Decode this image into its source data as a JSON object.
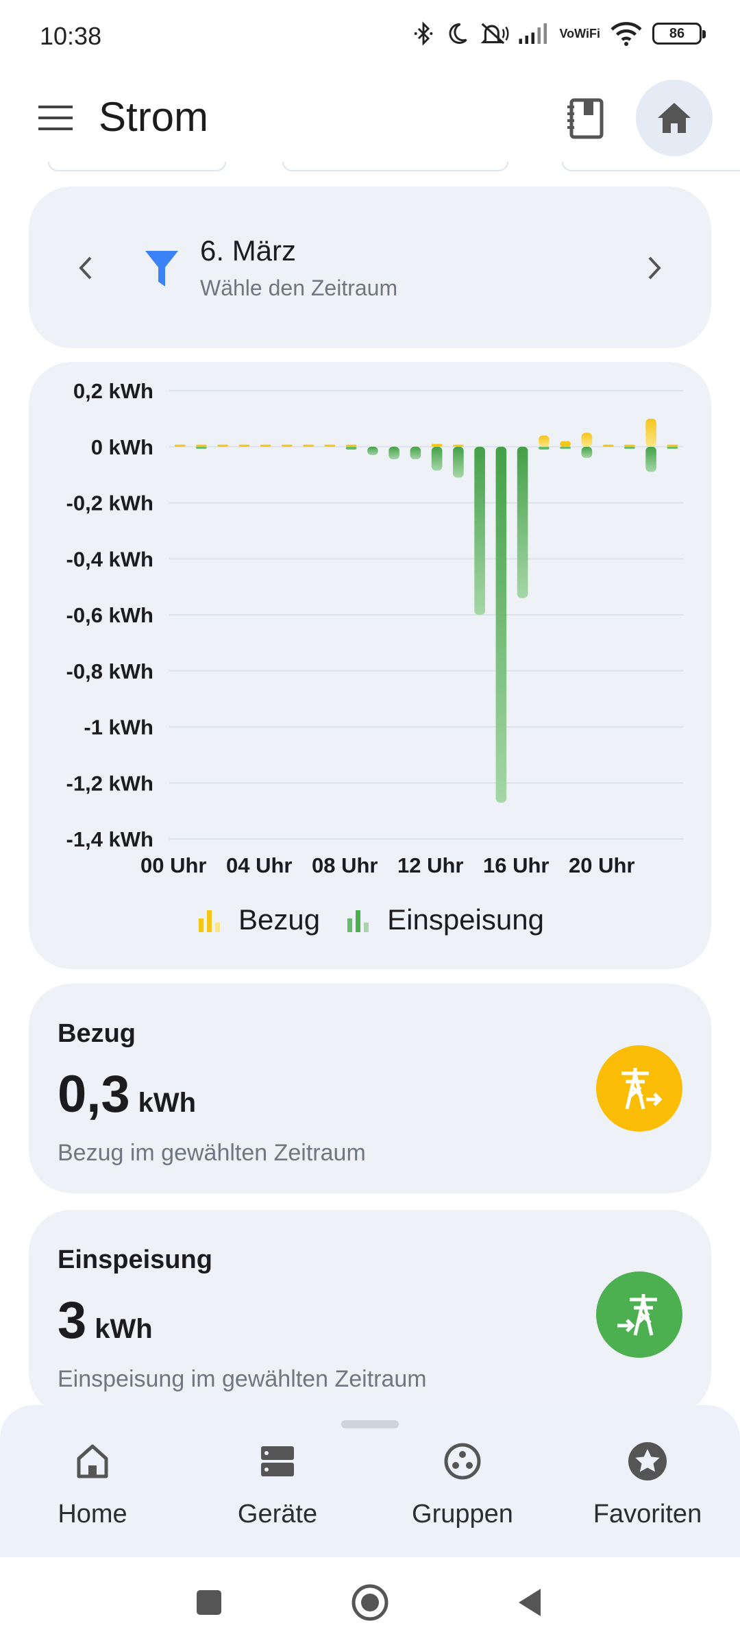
{
  "status_bar": {
    "time": "10:38",
    "icons": [
      "bluetooth-icon",
      "moon-icon",
      "mute-icon",
      "signal-icon",
      "vowifi-icon",
      "wifi-icon"
    ],
    "vowifi_top": "Vo",
    "vowifi_bottom": "WiFi",
    "battery": "86"
  },
  "app_bar": {
    "title": "Strom",
    "menu_icon": "menu-icon",
    "right_icons": [
      "notebook-icon",
      "home-icon"
    ]
  },
  "date_filter": {
    "title": "6. März",
    "subtitle": "Wähle den Zeitraum"
  },
  "chart_data": {
    "type": "bar",
    "title": "",
    "xlabel": "",
    "ylabel": "",
    "ylim": [
      -1.4,
      0.2
    ],
    "grid": true,
    "y_ticks": [
      0.2,
      0,
      -0.2,
      -0.4,
      -0.6,
      -0.8,
      -1,
      -1.2,
      -1.4
    ],
    "y_tick_labels": [
      "0,2 kWh",
      "0 kWh",
      "-0,2 kWh",
      "-0,4 kWh",
      "-0,6 kWh",
      "-0,8 kWh",
      "-1 kWh",
      "-1,2 kWh",
      "-1,4 kWh"
    ],
    "x_tick_labels": [
      "00 Uhr",
      "04 Uhr",
      "08 Uhr",
      "12 Uhr",
      "16 Uhr",
      "20 Uhr"
    ],
    "x_tick_hours": [
      0,
      4,
      8,
      12,
      16,
      20
    ],
    "legend_position": "bottom",
    "hours": [
      0,
      1,
      2,
      3,
      4,
      5,
      6,
      7,
      8,
      9,
      10,
      11,
      12,
      13,
      14,
      15,
      16,
      17,
      18,
      19,
      20,
      21,
      22,
      23
    ],
    "series": [
      {
        "name": "Bezug",
        "color": "#f5c518",
        "values": [
          0.004,
          0.004,
          0.004,
          0.004,
          0.004,
          0.004,
          0.004,
          0.004,
          0.004,
          0,
          0,
          0,
          0.01,
          0.004,
          0,
          0,
          0,
          0.04,
          0.02,
          0.05,
          0.004,
          0.004,
          0.1,
          0.004
        ]
      },
      {
        "name": "Einspeisung",
        "color": "#4caf50",
        "values": [
          0,
          -0.004,
          0,
          0,
          0,
          0,
          0,
          0,
          -0.01,
          -0.03,
          -0.045,
          -0.045,
          -0.085,
          -0.11,
          -0.6,
          -1.27,
          -0.54,
          -0.01,
          -0.004,
          -0.04,
          0,
          -0.004,
          -0.09,
          -0.004
        ]
      }
    ]
  },
  "stats": [
    {
      "title": "Bezug",
      "value": "0,3",
      "unit": "kWh",
      "description": "Bezug im gewählten Zeitraum",
      "icon": "grid-import-icon",
      "color": "#fbbc05"
    },
    {
      "title": "Einspeisung",
      "value": "3",
      "unit": "kWh",
      "description": "Einspeisung im gewählten Zeitraum",
      "icon": "grid-export-icon",
      "color": "#4caf50"
    }
  ],
  "bottom_nav": [
    {
      "label": "Home",
      "icon": "home-icon"
    },
    {
      "label": "Geräte",
      "icon": "devices-icon"
    },
    {
      "label": "Gruppen",
      "icon": "groups-icon"
    },
    {
      "label": "Favoriten",
      "icon": "star-icon"
    }
  ],
  "system_nav": [
    "recents-button",
    "home-button",
    "back-button"
  ]
}
